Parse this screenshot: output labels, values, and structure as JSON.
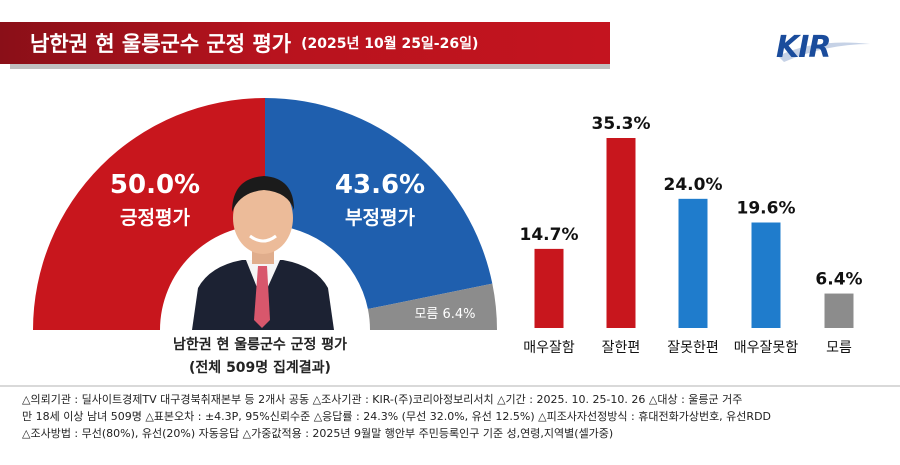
{
  "header": {
    "title": "남한권 현 울릉군수 군정 평가",
    "date": "(2025년 10월 25일-26일)",
    "logo": "KIR"
  },
  "caption": {
    "line1": "남한권 현 울릉군수 군정 평가",
    "line2": "(전체 509명 집계결과)"
  },
  "colors": {
    "positive": "#c8161d",
    "negative": "#1f5fae",
    "unknown": "#8c8c8c",
    "banner": "#b8131e"
  },
  "chart_data": [
    {
      "type": "pie",
      "title": "남한권 현 울릉군수 군정 평가",
      "slices": [
        {
          "label": "긍정평가",
          "value": 50.0,
          "display": "50.0%"
        },
        {
          "label": "부정평가",
          "value": 43.6,
          "display": "43.6%"
        },
        {
          "label": "모름",
          "value": 6.4,
          "display": "모름 6.4%"
        }
      ]
    },
    {
      "type": "bar",
      "categories": [
        "매우잘함",
        "잘한편",
        "잘못한편",
        "매우잘못함",
        "모름"
      ],
      "values": [
        14.7,
        35.3,
        24.0,
        19.6,
        6.4
      ],
      "labels": [
        "14.7%",
        "35.3%",
        "24.0%",
        "19.6%",
        "6.4%"
      ],
      "colors": [
        "#c8161d",
        "#c8161d",
        "#1f7ccc",
        "#1f7ccc",
        "#8c8c8c"
      ],
      "ylim": [
        0,
        40
      ]
    }
  ],
  "footer": {
    "line1": "△의뢰기관 : 딜사이트경제TV 대구경북취재본부 등 2개사 공동   △조사기관 : KIR-(주)코리아정보리서치   △기간 : 2025. 10. 25-10. 26   △대상 : 울릉군 거주",
    "line2": "만 18세 이상 남녀 509명   △표본오차 : ±4.3P, 95%신뢰수준   △응답률 : 24.3% (무선 32.0%, 유선 12.5%)   △피조사자선정방식 : 휴대전화가상번호, 유선RDD",
    "line3": "△조사방법 : 무선(80%), 유선(20%) 자동응답   △가중값적용 : 2025년 9월말 행안부 주민등록인구 기준 성,연령,지역별(셀가중)"
  }
}
